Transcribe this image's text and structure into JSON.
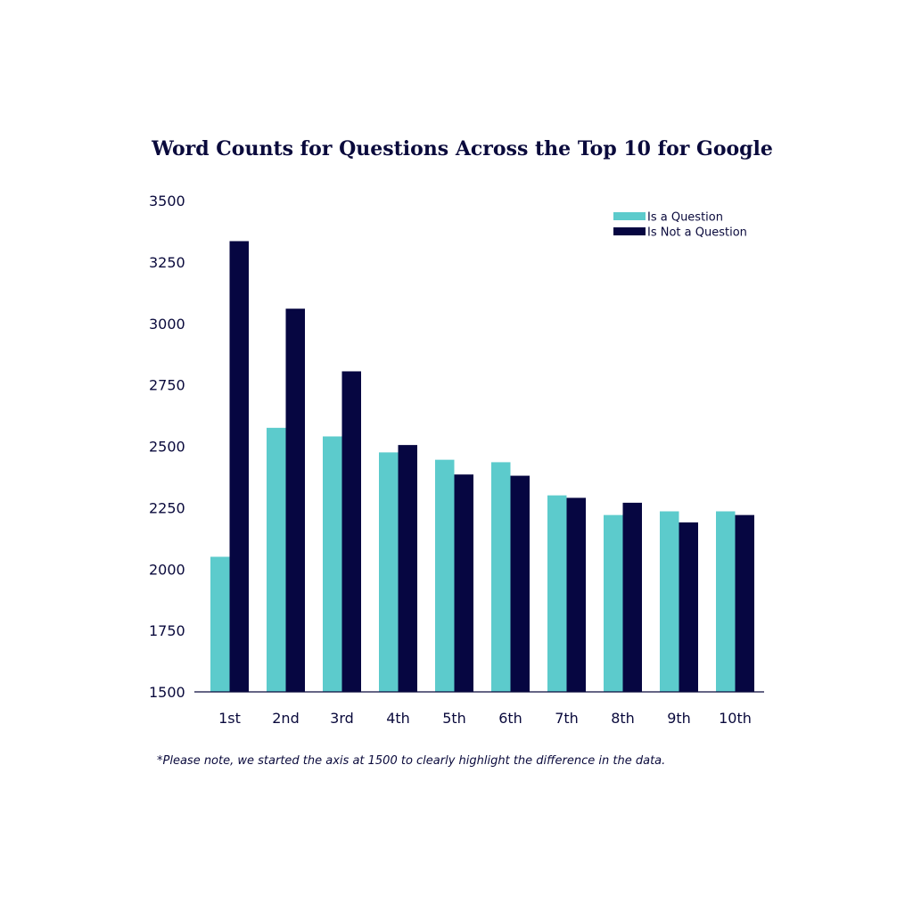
{
  "chart_data": {
    "type": "bar",
    "title": "Word Counts for Questions Across the Top 10 for Google",
    "xlabel": "",
    "ylabel": "",
    "categories": [
      "1st",
      "2nd",
      "3rd",
      "4th",
      "5th",
      "6th",
      "7th",
      "8th",
      "9th",
      "10th"
    ],
    "series": [
      {
        "name": "Is a Question",
        "color": "#5ccbcc",
        "values": [
          2050,
          2575,
          2540,
          2475,
          2445,
          2435,
          2300,
          2220,
          2235,
          2235
        ]
      },
      {
        "name": "Is Not a Question",
        "color": "#060641",
        "values": [
          3335,
          3060,
          2805,
          2505,
          2385,
          2380,
          2290,
          2270,
          2190,
          2220
        ]
      }
    ],
    "ylim": [
      1500,
      3500
    ],
    "yticks": [
      1500,
      1750,
      2000,
      2250,
      2500,
      2750,
      3000,
      3250,
      3500
    ],
    "grid": false,
    "legend_position": "top-right"
  },
  "footnote": "*Please note, we started the axis at 1500 to clearly highlight the difference in the data.",
  "colors": {
    "text": "#0a0a3c",
    "axis": "#0a0a3c"
  }
}
